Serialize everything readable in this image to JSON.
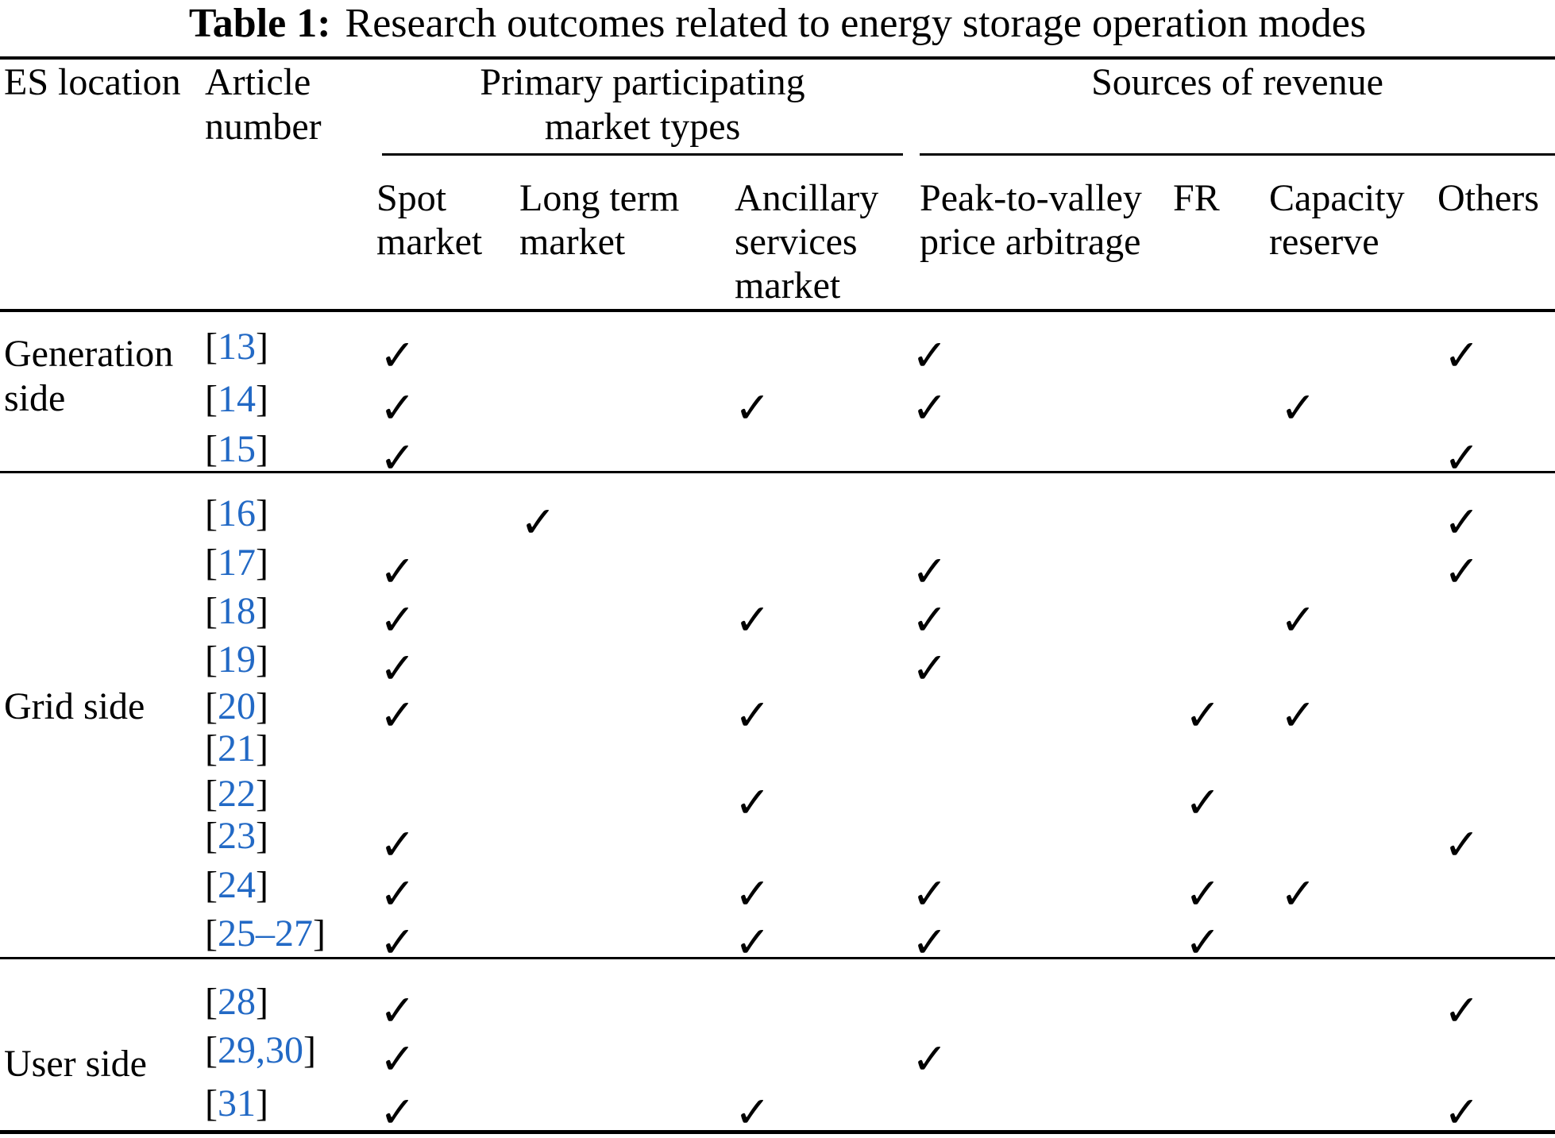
{
  "title": {
    "label": "Table 1:",
    "text": "Research outcomes related to energy storage operation modes"
  },
  "colors": {
    "citation_blue": "#2269c5",
    "text_black": "#000000",
    "page_background": "#ffffff"
  },
  "check_glyph": "✓",
  "table": {
    "header": {
      "es_location": "ES location",
      "article_number_lines": [
        "Article",
        "number"
      ],
      "group_primary_lines": [
        "Primary participating",
        "market types"
      ],
      "group_sources": "Sources of revenue",
      "subcolumns": [
        {
          "key": "spot",
          "lines": [
            "Spot",
            "market"
          ]
        },
        {
          "key": "long_term",
          "lines": [
            "Long term",
            "market"
          ]
        },
        {
          "key": "ancillary",
          "lines": [
            "Ancillary",
            "services",
            "market"
          ]
        },
        {
          "key": "peak",
          "lines": [
            "Peak-to-valley",
            "price arbitrage"
          ]
        },
        {
          "key": "fr",
          "lines": [
            "FR"
          ]
        },
        {
          "key": "capacity",
          "lines": [
            "Capacity",
            "reserve"
          ]
        },
        {
          "key": "others",
          "lines": [
            "Others"
          ]
        }
      ]
    },
    "sections": [
      {
        "location": "Generation side",
        "rows": [
          {
            "article": "[13]",
            "checks": [
              true,
              false,
              false,
              true,
              false,
              false,
              true
            ]
          },
          {
            "article": "[14]",
            "checks": [
              true,
              false,
              true,
              true,
              false,
              true,
              false
            ]
          },
          {
            "article": "[15]",
            "checks": [
              true,
              false,
              false,
              false,
              false,
              false,
              true
            ]
          }
        ]
      },
      {
        "location": "Grid side",
        "rows": [
          {
            "article": "[16]",
            "checks": [
              false,
              true,
              false,
              false,
              false,
              false,
              true
            ]
          },
          {
            "article": "[17]",
            "checks": [
              true,
              false,
              false,
              true,
              false,
              false,
              true
            ]
          },
          {
            "article": "[18]",
            "checks": [
              true,
              false,
              true,
              true,
              false,
              true,
              false
            ]
          },
          {
            "article": "[19]",
            "checks": [
              true,
              false,
              false,
              true,
              false,
              false,
              false
            ]
          },
          {
            "article": "[20]",
            "checks": [
              true,
              false,
              true,
              false,
              true,
              true,
              false
            ]
          },
          {
            "article": "[21]",
            "checks": [
              false,
              false,
              false,
              false,
              false,
              false,
              false
            ]
          },
          {
            "article": "[22]",
            "checks": [
              false,
              false,
              true,
              false,
              true,
              false,
              false
            ]
          },
          {
            "article": "[23]",
            "checks": [
              true,
              false,
              false,
              false,
              false,
              false,
              true
            ]
          },
          {
            "article": "[24]",
            "checks": [
              true,
              false,
              true,
              true,
              true,
              true,
              false
            ]
          },
          {
            "article": "[25–27]",
            "checks": [
              true,
              false,
              true,
              true,
              true,
              false,
              false
            ]
          }
        ]
      },
      {
        "location": "User side",
        "rows": [
          {
            "article": "[28]",
            "checks": [
              true,
              false,
              false,
              false,
              false,
              false,
              true
            ]
          },
          {
            "article": "[29,30]",
            "checks": [
              true,
              false,
              false,
              true,
              false,
              false,
              false
            ]
          },
          {
            "article": "[31]",
            "checks": [
              true,
              false,
              true,
              false,
              false,
              false,
              true
            ]
          }
        ]
      }
    ]
  }
}
